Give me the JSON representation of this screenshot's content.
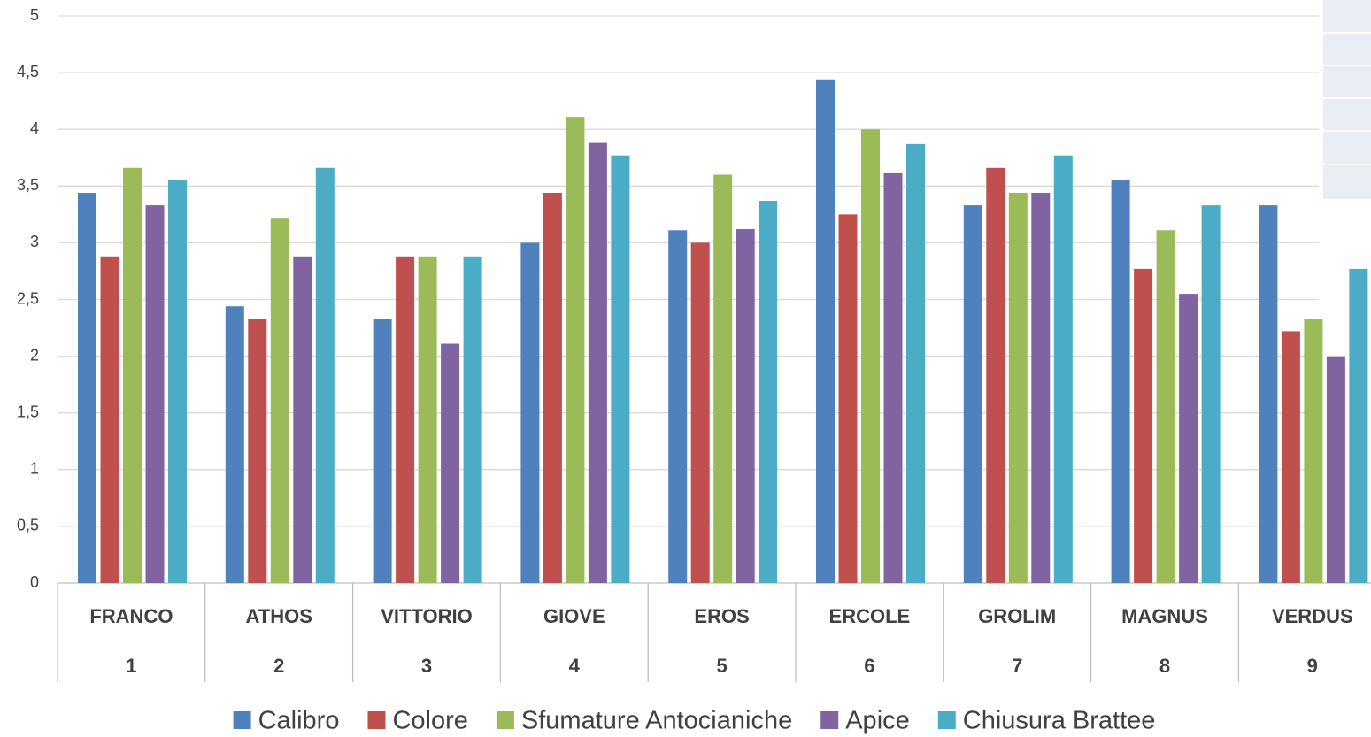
{
  "chart_data": {
    "type": "bar",
    "categories": [
      "FRANCO",
      "ATHOS",
      "VITTORIO",
      "GIOVE",
      "EROS",
      "ERCOLE",
      "GROLIM",
      "MAGNUS",
      "VERDUS"
    ],
    "category_numbers": [
      "1",
      "2",
      "3",
      "4",
      "5",
      "6",
      "7",
      "8",
      "9"
    ],
    "series": [
      {
        "name": "Calibro",
        "color": "#4f81bd",
        "values": [
          3.44,
          2.44,
          2.33,
          3.0,
          3.11,
          4.44,
          3.33,
          3.55,
          3.33
        ]
      },
      {
        "name": "Colore",
        "color": "#c0504d",
        "values": [
          2.88,
          2.33,
          2.88,
          3.44,
          3.0,
          3.25,
          3.66,
          2.77,
          2.22
        ]
      },
      {
        "name": "Sfumature Antocianiche",
        "color": "#9bbb59",
        "values": [
          3.66,
          3.22,
          2.88,
          4.11,
          3.6,
          4.0,
          3.44,
          3.11,
          2.33
        ]
      },
      {
        "name": "Apice",
        "color": "#8064a2",
        "values": [
          3.33,
          2.88,
          2.11,
          3.88,
          3.12,
          3.62,
          3.44,
          2.55,
          2.0
        ]
      },
      {
        "name": "Chiusura Brattee",
        "color": "#4bacc6",
        "values": [
          3.55,
          3.66,
          2.88,
          3.77,
          3.37,
          3.87,
          3.77,
          3.33,
          2.77
        ]
      }
    ],
    "ylim": [
      0,
      5
    ],
    "yticks": [
      0,
      {
        "value": 0.5,
        "label": "0,5"
      },
      1,
      {
        "value": 1.5,
        "label": "1,5"
      },
      2,
      {
        "value": 2.5,
        "label": "2,5"
      },
      3,
      {
        "value": 3.5,
        "label": "3,5"
      },
      4,
      {
        "value": 4.5,
        "label": "4,5"
      },
      5
    ],
    "grid": true,
    "legend": "bottom"
  }
}
